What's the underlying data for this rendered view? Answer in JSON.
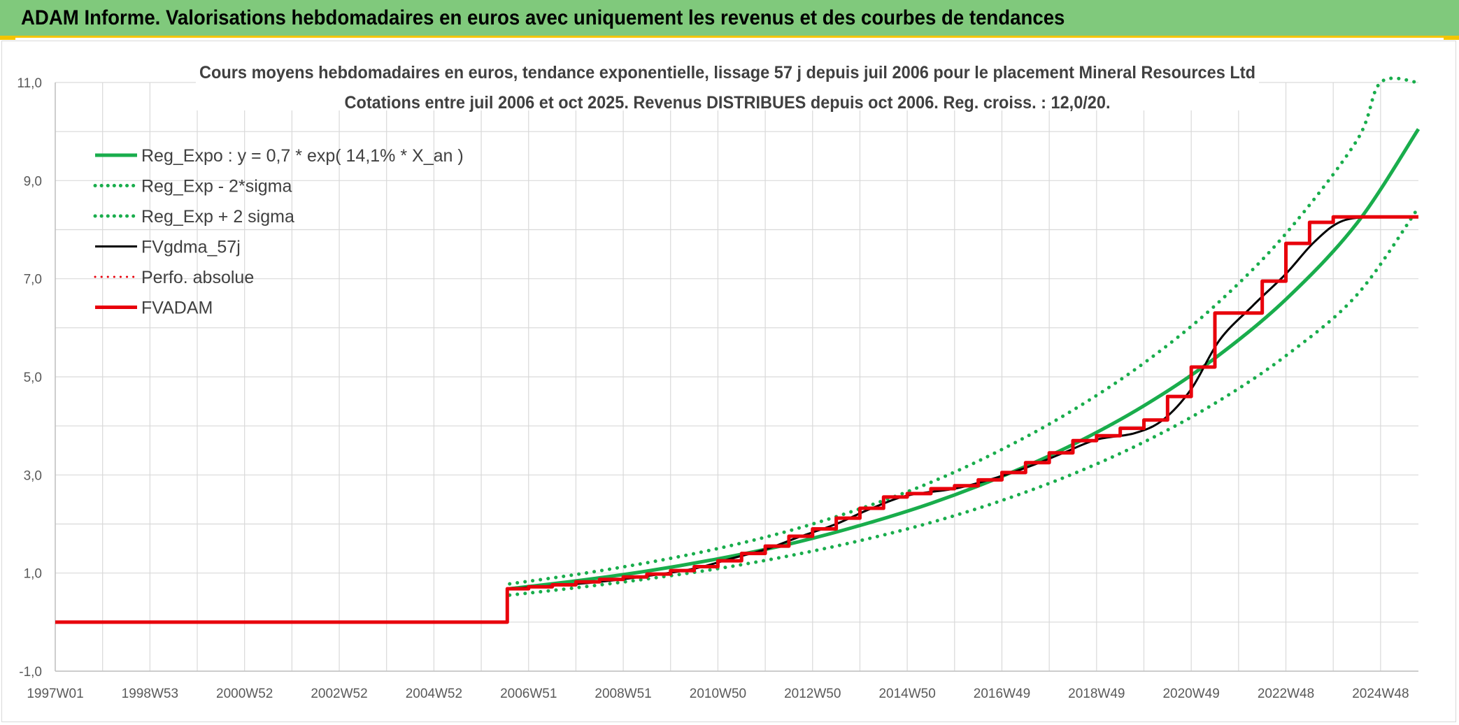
{
  "header": {
    "title": "ADAM Informe. Valorisations hebdomadaires en euros avec uniquement les revenus et des courbes de tendances"
  },
  "colors": {
    "header_bg": "#80c97c",
    "green": "#19ad4c",
    "black": "#000000",
    "red": "#e8000b",
    "grid": "#d9d9d9"
  },
  "chart_data": {
    "type": "line",
    "title": "Cours moyens hebdomadaires en euros, tendance exponentielle, lissage 57 j depuis juil 2006 pour le placement Mineral Resources Ltd",
    "subtitle": "Cotations entre juil 2006 et oct 2025. Revenus DISTRIBUES depuis oct 2006. Reg. croiss. : 12,0/20.",
    "xlabel": "",
    "ylabel": "",
    "ylim": [
      -1,
      11
    ],
    "xlim": [
      1997.0,
      2025.8
    ],
    "grid": true,
    "legend_position": "top-left",
    "y_ticks": [
      "-1,0",
      "1,0",
      "3,0",
      "5,0",
      "7,0",
      "9,0",
      "11,0"
    ],
    "x_ticks": [
      {
        "label": "1997W01",
        "x": 1997.0
      },
      {
        "label": "1998W53",
        "x": 1999.0
      },
      {
        "label": "2000W52",
        "x": 2001.0
      },
      {
        "label": "2002W52",
        "x": 2003.0
      },
      {
        "label": "2004W52",
        "x": 2005.0
      },
      {
        "label": "2006W51",
        "x": 2007.0
      },
      {
        "label": "2008W51",
        "x": 2009.0
      },
      {
        "label": "2010W50",
        "x": 2011.0
      },
      {
        "label": "2012W50",
        "x": 2013.0
      },
      {
        "label": "2014W50",
        "x": 2015.0
      },
      {
        "label": "2016W49",
        "x": 2017.0
      },
      {
        "label": "2018W49",
        "x": 2019.0
      },
      {
        "label": "2020W49",
        "x": 2021.0
      },
      {
        "label": "2022W48",
        "x": 2023.0
      },
      {
        "label": "2024W48",
        "x": 2025.0
      }
    ],
    "series": [
      {
        "name": "Reg_Expo : y = 0,7 * exp( 14,1% *  X_an )",
        "style": "solid",
        "color": "#19ad4c",
        "width": 5,
        "x": [
          2006.6,
          2008,
          2009.5,
          2011,
          2012.5,
          2014,
          2015.5,
          2017,
          2018.5,
          2020,
          2021.5,
          2023,
          2024.5,
          2025.8
        ],
        "y": [
          0.68,
          0.84,
          1.04,
          1.29,
          1.59,
          1.97,
          2.42,
          2.97,
          3.62,
          4.41,
          5.38,
          6.58,
          8.13,
          10.05
        ]
      },
      {
        "name": "Reg_Exp - 2*sigma",
        "style": "dotted",
        "color": "#19ad4c",
        "width": 5,
        "x": [
          2006.6,
          2008,
          2009.5,
          2011,
          2012.5,
          2014,
          2015.5,
          2017,
          2018.5,
          2020,
          2021.5,
          2023,
          2024.5,
          2025.8
        ],
        "y": [
          0.55,
          0.7,
          0.88,
          1.09,
          1.35,
          1.66,
          2.03,
          2.48,
          3.02,
          3.67,
          4.46,
          5.43,
          6.67,
          8.45
        ]
      },
      {
        "name": "Reg_Exp + 2 sigma",
        "style": "dotted",
        "color": "#19ad4c",
        "width": 5,
        "x": [
          2006.6,
          2008,
          2009.5,
          2011,
          2012.5,
          2014,
          2015.5,
          2017,
          2018.5,
          2020,
          2021.5,
          2023,
          2024.5,
          2025.0,
          2025.8
        ],
        "y": [
          0.78,
          0.97,
          1.21,
          1.5,
          1.86,
          2.31,
          2.85,
          3.52,
          4.32,
          5.28,
          6.45,
          7.92,
          9.82,
          11.0,
          11.0
        ]
      },
      {
        "name": "FVgdma_57j",
        "style": "solid",
        "color": "#000000",
        "width": 3,
        "x": [
          2006.6,
          2007.5,
          2008.5,
          2009.5,
          2010.5,
          2011.3,
          2012.0,
          2012.7,
          2013.5,
          2014.2,
          2015.0,
          2016.0,
          2016.8,
          2017.6,
          2018.3,
          2019.0,
          2019.8,
          2020.4,
          2021.0,
          2021.6,
          2022.3,
          2023.0,
          2023.6,
          2024.2,
          2025.0,
          2025.8
        ],
        "y": [
          0.68,
          0.74,
          0.82,
          0.94,
          1.09,
          1.3,
          1.48,
          1.73,
          2.0,
          2.3,
          2.58,
          2.72,
          2.92,
          3.18,
          3.45,
          3.72,
          3.85,
          4.12,
          4.75,
          5.75,
          6.45,
          7.1,
          7.75,
          8.18,
          8.26,
          8.26
        ]
      },
      {
        "name": "Perfo. absolue",
        "style": "dotted",
        "color": "#e8000b",
        "width": 3,
        "x": [],
        "y": []
      },
      {
        "name": "FVADAM",
        "style": "step",
        "color": "#e8000b",
        "width": 5,
        "x": [
          1997.0,
          2006.5,
          2006.55,
          2007.0,
          2007.5,
          2008.0,
          2008.5,
          2009.0,
          2009.5,
          2010.0,
          2010.5,
          2011.0,
          2011.5,
          2012.0,
          2012.5,
          2013.0,
          2013.5,
          2014.0,
          2014.5,
          2015.0,
          2015.5,
          2016.0,
          2016.5,
          2017.0,
          2017.5,
          2018.0,
          2018.5,
          2019.0,
          2019.5,
          2020.0,
          2020.5,
          2021.0,
          2021.5,
          2022.0,
          2022.5,
          2023.0,
          2023.5,
          2024.0,
          2025.8
        ],
        "y": [
          0.0,
          0.0,
          0.68,
          0.72,
          0.76,
          0.82,
          0.87,
          0.92,
          0.98,
          1.05,
          1.13,
          1.25,
          1.4,
          1.55,
          1.75,
          1.9,
          2.12,
          2.32,
          2.55,
          2.62,
          2.72,
          2.78,
          2.9,
          3.05,
          3.25,
          3.45,
          3.7,
          3.8,
          3.95,
          4.12,
          4.6,
          5.2,
          6.3,
          6.3,
          6.95,
          7.72,
          8.15,
          8.26,
          8.26
        ]
      }
    ]
  }
}
